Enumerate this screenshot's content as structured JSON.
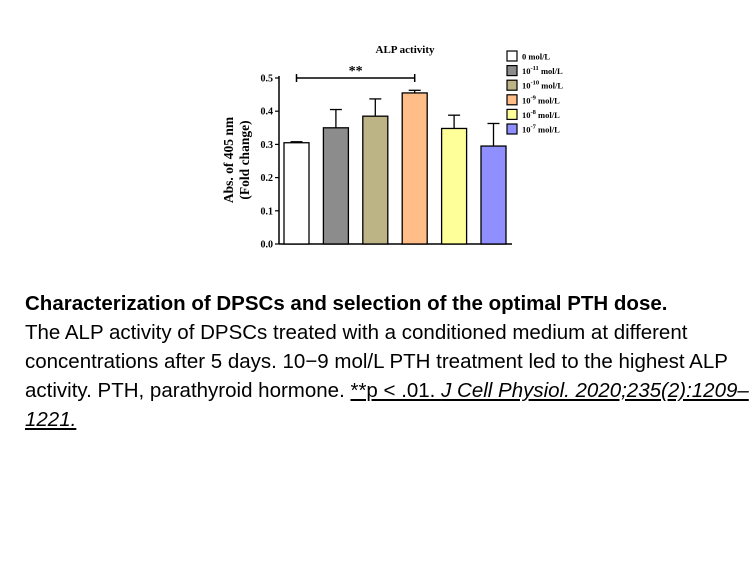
{
  "chart_data": {
    "type": "bar",
    "title": "ALP activity",
    "ylabel_line1": "Abs. of 405 nm",
    "ylabel_line2": "(Fold change)",
    "ylim": [
      0,
      0.5
    ],
    "yticks": [
      "0.0",
      "0.1",
      "0.2",
      "0.3",
      "0.4",
      "0.5"
    ],
    "ytick_values": [
      0,
      0.1,
      0.2,
      0.3,
      0.4,
      0.5
    ],
    "categories": [
      "0 mol/L",
      "10^-11 mol/L",
      "10^-10 mol/L",
      "10^-9 mol/L",
      "10^-8 mol/L",
      "10^-7 mol/L"
    ],
    "values": [
      0.305,
      0.35,
      0.385,
      0.455,
      0.348,
      0.295
    ],
    "errors": [
      0.003,
      0.055,
      0.052,
      0.008,
      0.04,
      0.068
    ],
    "colors": [
      "#ffffff",
      "#8c8c8c",
      "#bdb486",
      "#ffbe87",
      "#ffff99",
      "#8f8fff"
    ],
    "legend": [
      {
        "base": "0 mol/L",
        "exp": ""
      },
      {
        "base": "10",
        "exp": "-11",
        "unit": " mol/L"
      },
      {
        "base": "10",
        "exp": "-10",
        "unit": "  mol/L"
      },
      {
        "base": "10",
        "exp": "-9",
        "unit": " mol/L"
      },
      {
        "base": "10",
        "exp": "-8",
        "unit": " mol/L"
      },
      {
        "base": "10",
        "exp": "-7",
        "unit": " mol/L"
      }
    ],
    "legend_position": "top-right",
    "grid": false,
    "significance": {
      "label": "**",
      "from_index": 0,
      "to_index": 3
    }
  },
  "caption": {
    "title": "Characterization of DPSCs and selection of the optimal PTH dose.",
    "body": "The ALP activity of DPSCs treated with a conditioned medium at different concentrations after 5 days. 10−9 mol/L PTH treatment led to the highest ALP activity. PTH, parathyroid hormone. ",
    "link_plain": "**p < .01. ",
    "link_italic": "J Cell Physiol. 2020;235(2):1209–1221."
  }
}
